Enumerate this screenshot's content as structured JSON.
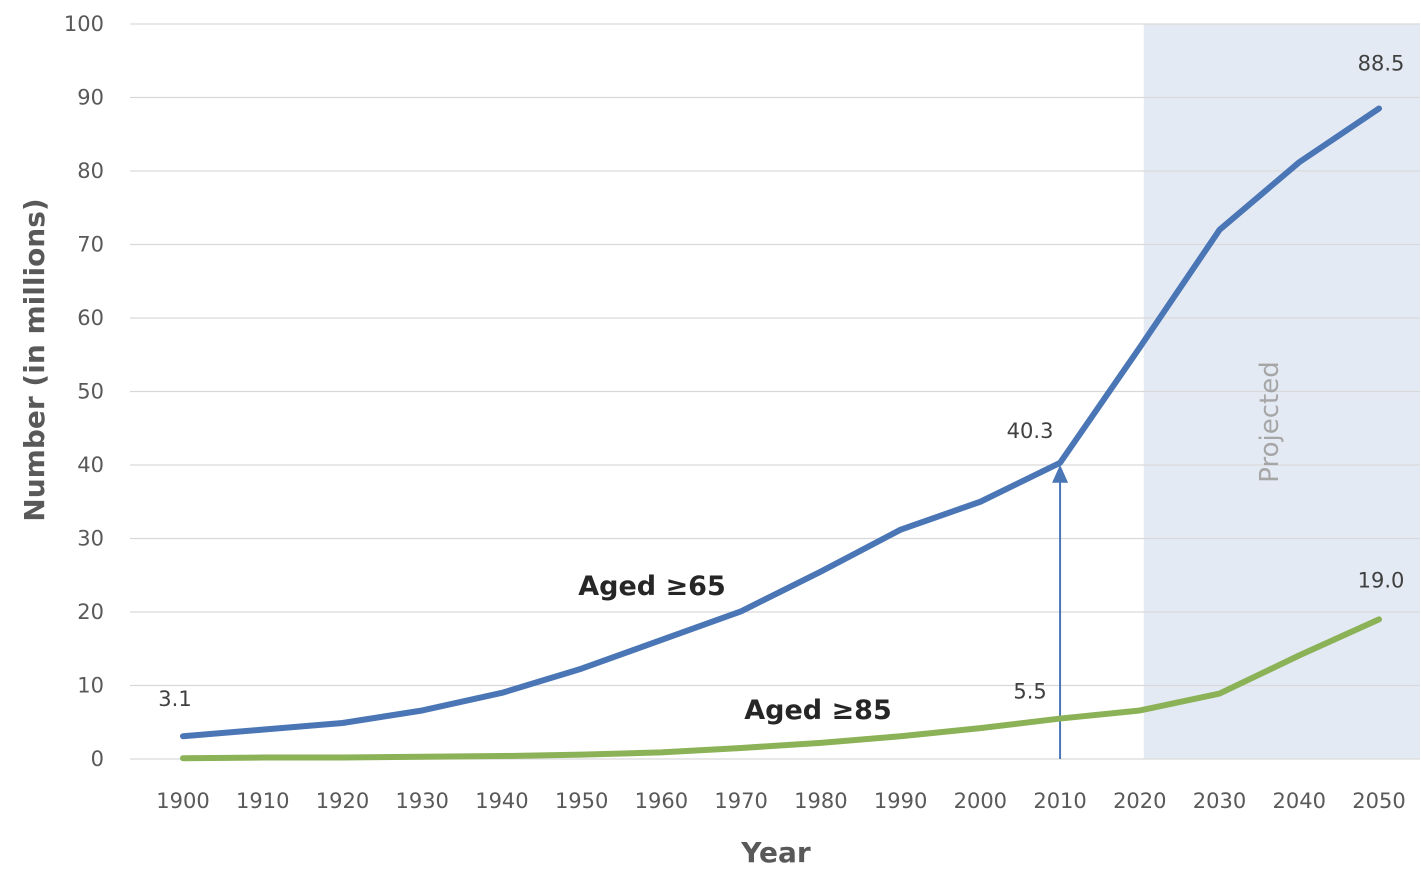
{
  "chart_data": {
    "type": "line",
    "xlabel": "Year",
    "ylabel": "Number (in millions)",
    "ylim": [
      0,
      100
    ],
    "yticks": [
      0,
      10,
      20,
      30,
      40,
      50,
      60,
      70,
      80,
      90,
      100
    ],
    "x": [
      1900,
      1910,
      1920,
      1930,
      1940,
      1950,
      1960,
      1970,
      1980,
      1990,
      2000,
      2010,
      2020,
      2030,
      2040,
      2050
    ],
    "xtick_labels": [
      "1900",
      "1910",
      "1920",
      "1930",
      "1940",
      "1950",
      "1960",
      "1970",
      "1980",
      "1990",
      "2000",
      "2010",
      "2020",
      "2030",
      "2040",
      "2050"
    ],
    "grid": true,
    "series": [
      {
        "name": "Aged ≥65",
        "color": "#4a76b6",
        "values": [
          3.1,
          4.0,
          4.9,
          6.6,
          9.0,
          12.3,
          16.2,
          20.1,
          25.5,
          31.2,
          35.0,
          40.3,
          56.0,
          72.0,
          81.2,
          88.5
        ]
      },
      {
        "name": "Aged ≥85",
        "color": "#8bb257",
        "values": [
          0.1,
          0.2,
          0.2,
          0.3,
          0.4,
          0.6,
          0.9,
          1.5,
          2.2,
          3.1,
          4.2,
          5.5,
          6.6,
          8.9,
          14.1,
          19.0
        ]
      }
    ],
    "projection": {
      "label": "Projected",
      "x_from": 2020.5,
      "x_to": 2050,
      "color": "#e4eaf4"
    },
    "annotations": {
      "data_labels": [
        {
          "series": 0,
          "x": 1900,
          "text": "3.1"
        },
        {
          "series": 0,
          "x": 2010,
          "text": "40.3"
        },
        {
          "series": 0,
          "x": 2050,
          "text": "88.5"
        },
        {
          "series": 1,
          "x": 2010,
          "text": "5.5"
        },
        {
          "series": 1,
          "x": 2050,
          "text": "19.0"
        }
      ],
      "arrow": {
        "x": 2010,
        "from": 0,
        "to": 40.3,
        "color": "#4a76b6"
      }
    }
  }
}
